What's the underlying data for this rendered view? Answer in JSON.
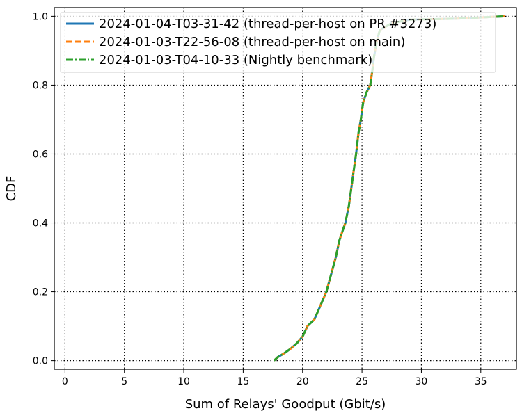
{
  "chart_data": {
    "type": "line",
    "title": "",
    "xlabel": "Sum of Relays' Goodput (Gbit/s)",
    "ylabel": "CDF",
    "xlim": [
      -0.9,
      38
    ],
    "ylim": [
      -0.025,
      1.025
    ],
    "xticks": [
      0,
      5,
      10,
      15,
      20,
      25,
      30,
      35
    ],
    "yticks": [
      0.0,
      0.2,
      0.4,
      0.6,
      0.8,
      1.0
    ],
    "xtick_labels": [
      "0",
      "5",
      "10",
      "15",
      "20",
      "25",
      "30",
      "35"
    ],
    "ytick_labels": [
      "0.0",
      "0.2",
      "0.4",
      "0.6",
      "0.8",
      "1.0"
    ],
    "grid": true,
    "grid_style": "dotted",
    "legend_position": "top",
    "series": [
      {
        "name": "2024-01-04-T03-31-42 (thread-per-host on PR #3273)",
        "color": "#1f77b4",
        "style": "solid",
        "x": [
          17.6,
          17.9,
          18.4,
          19.0,
          19.5,
          20.0,
          20.4,
          21.0,
          21.5,
          22.0,
          22.4,
          22.8,
          23.1,
          23.4,
          23.6,
          23.9,
          24.1,
          24.3,
          24.5,
          24.7,
          24.9,
          25.1,
          25.4,
          25.7,
          25.9,
          26.0,
          26.2,
          26.5,
          27.5,
          29.0,
          33.0,
          37.0
        ],
        "y": [
          0.0,
          0.01,
          0.02,
          0.035,
          0.05,
          0.07,
          0.1,
          0.12,
          0.16,
          0.2,
          0.25,
          0.3,
          0.35,
          0.38,
          0.4,
          0.45,
          0.5,
          0.55,
          0.6,
          0.66,
          0.7,
          0.75,
          0.78,
          0.8,
          0.85,
          0.88,
          0.92,
          0.96,
          0.98,
          0.99,
          0.993,
          1.0
        ]
      },
      {
        "name": "2024-01-03-T22-56-08 (thread-per-host on main)",
        "color": "#ff7f0e",
        "style": "dashed",
        "x": [
          17.6,
          17.9,
          18.4,
          19.0,
          19.5,
          20.0,
          20.4,
          21.0,
          21.5,
          22.0,
          22.4,
          22.8,
          23.1,
          23.4,
          23.6,
          23.9,
          24.1,
          24.3,
          24.5,
          24.7,
          24.9,
          25.1,
          25.4,
          25.7,
          25.9,
          26.0,
          26.2,
          26.5,
          27.5,
          29.0,
          33.0,
          37.0
        ],
        "y": [
          0.0,
          0.01,
          0.02,
          0.035,
          0.05,
          0.07,
          0.1,
          0.12,
          0.16,
          0.2,
          0.25,
          0.3,
          0.35,
          0.38,
          0.4,
          0.45,
          0.5,
          0.55,
          0.6,
          0.66,
          0.7,
          0.75,
          0.78,
          0.8,
          0.85,
          0.88,
          0.92,
          0.96,
          0.98,
          0.99,
          0.993,
          1.0
        ]
      },
      {
        "name": "2024-01-03-T04-10-33 (Nightly benchmark)",
        "color": "#2ca02c",
        "style": "dashdot",
        "x": [
          17.6,
          17.9,
          18.4,
          19.0,
          19.5,
          20.0,
          20.4,
          21.0,
          21.5,
          22.0,
          22.4,
          22.8,
          23.1,
          23.4,
          23.6,
          23.9,
          24.1,
          24.3,
          24.5,
          24.7,
          24.9,
          25.1,
          25.4,
          25.7,
          25.9,
          26.0,
          26.2,
          26.5,
          27.5,
          29.0,
          33.0,
          37.0
        ],
        "y": [
          0.0,
          0.01,
          0.02,
          0.035,
          0.05,
          0.07,
          0.1,
          0.12,
          0.16,
          0.2,
          0.25,
          0.3,
          0.35,
          0.38,
          0.4,
          0.45,
          0.5,
          0.55,
          0.6,
          0.66,
          0.7,
          0.75,
          0.78,
          0.8,
          0.85,
          0.88,
          0.92,
          0.96,
          0.98,
          0.99,
          0.993,
          1.0
        ]
      }
    ]
  }
}
